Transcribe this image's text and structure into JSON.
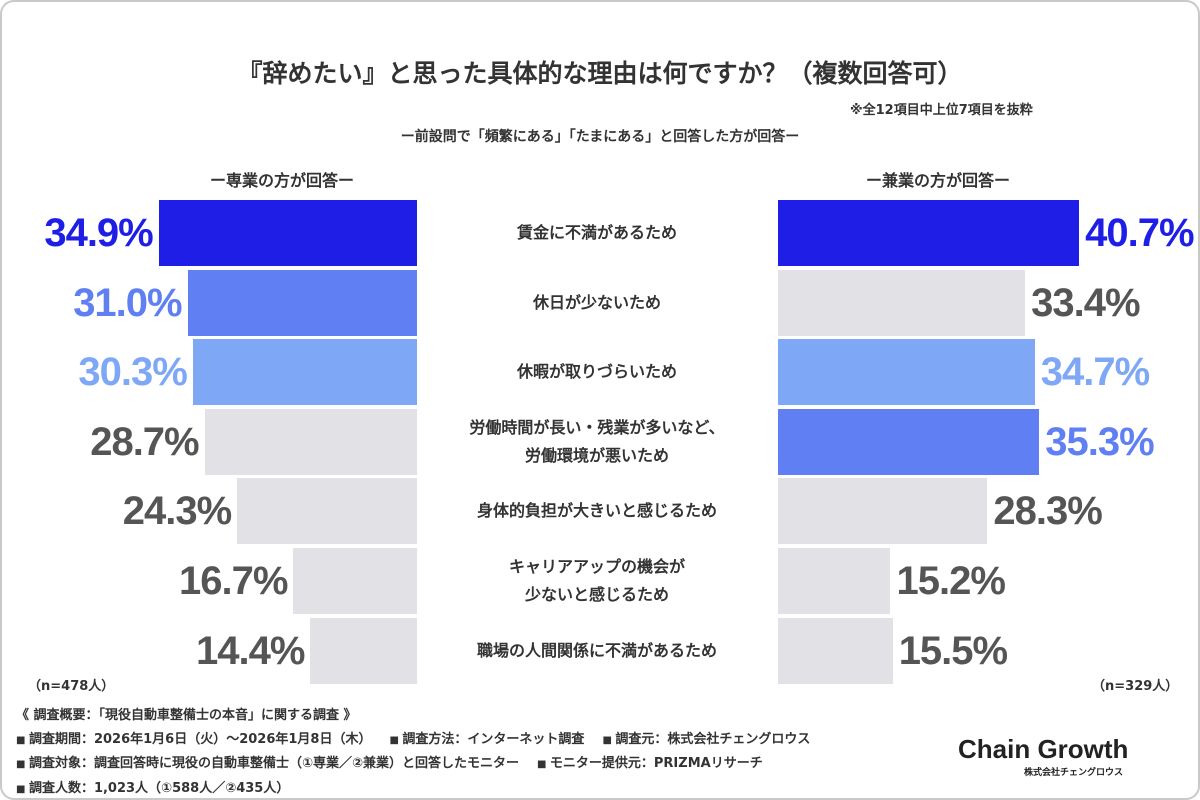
{
  "chart_data": {
    "type": "butterfly",
    "title": "『辞めたい』と思った具体的な理由は何ですか？（複数回答可）",
    "note": "※全12項目中上位7項目を抜粋",
    "subtitle": "ー前設問で「頻繁にある」「たまにある」と回答した方が回答ー",
    "categories": [
      "賃金に不満があるため",
      "休日が少ないため",
      "休暇が取りづらいため",
      "労働時間が長い・残業が多いなど、\n労働環境が悪いため",
      "身体的負担が大きいと感じるため",
      "キャリアアップの機会が\n少ないと感じるため",
      "職場の人間関係に不満があるため"
    ],
    "series": [
      {
        "name": "ー専業の方が回答ー",
        "n": "（n=478人）",
        "values": [
          34.9,
          31.0,
          30.3,
          28.7,
          24.3,
          16.7,
          14.4
        ],
        "value_labels": [
          "34.9%",
          "31.0%",
          "30.3%",
          "28.7%",
          "24.3%",
          "16.7%",
          "14.4%"
        ],
        "colors": [
          "#1e1ee6",
          "#5f7ff2",
          "#7ea8f6",
          "#e2e2e6",
          "#e2e2e6",
          "#e2e2e6",
          "#e2e2e6"
        ],
        "label_colors": [
          "#1e1ee6",
          "#5f7ff2",
          "#7ea8f6",
          "#555555",
          "#555555",
          "#555555",
          "#555555"
        ]
      },
      {
        "name": "ー兼業の方が回答ー",
        "n": "（n=329人）",
        "values": [
          40.7,
          33.4,
          34.7,
          35.3,
          28.3,
          15.2,
          15.5
        ],
        "value_labels": [
          "40.7%",
          "33.4%",
          "34.7%",
          "35.3%",
          "28.3%",
          "15.2%",
          "15.5%"
        ],
        "colors": [
          "#1e1ee6",
          "#e2e2e6",
          "#7ea8f6",
          "#5f7ff2",
          "#e2e2e6",
          "#e2e2e6",
          "#e2e2e6"
        ],
        "label_colors": [
          "#1e1ee6",
          "#555555",
          "#7ea8f6",
          "#5f7ff2",
          "#555555",
          "#555555",
          "#555555"
        ]
      }
    ]
  },
  "footer": {
    "heading": "《 調査概要：「現役自動車整備士の本音」に関する調査 》",
    "lines": [
      [
        "調査期間：2026年1月6日（火）～2026年1月8日（木）",
        "調査方法：インターネット調査",
        "調査元：株式会社チェングロウス"
      ],
      [
        "調査対象：調査回答時に現役の自動車整備士（①専業／②兼業）と回答したモニター",
        "モニター提供元：PRIZMAリサーチ"
      ],
      [
        "調査人数：1,023人（①588人／②435人）"
      ]
    ],
    "logo": "Chain Growth",
    "logo_sub": "株式会社チェングロウス"
  }
}
